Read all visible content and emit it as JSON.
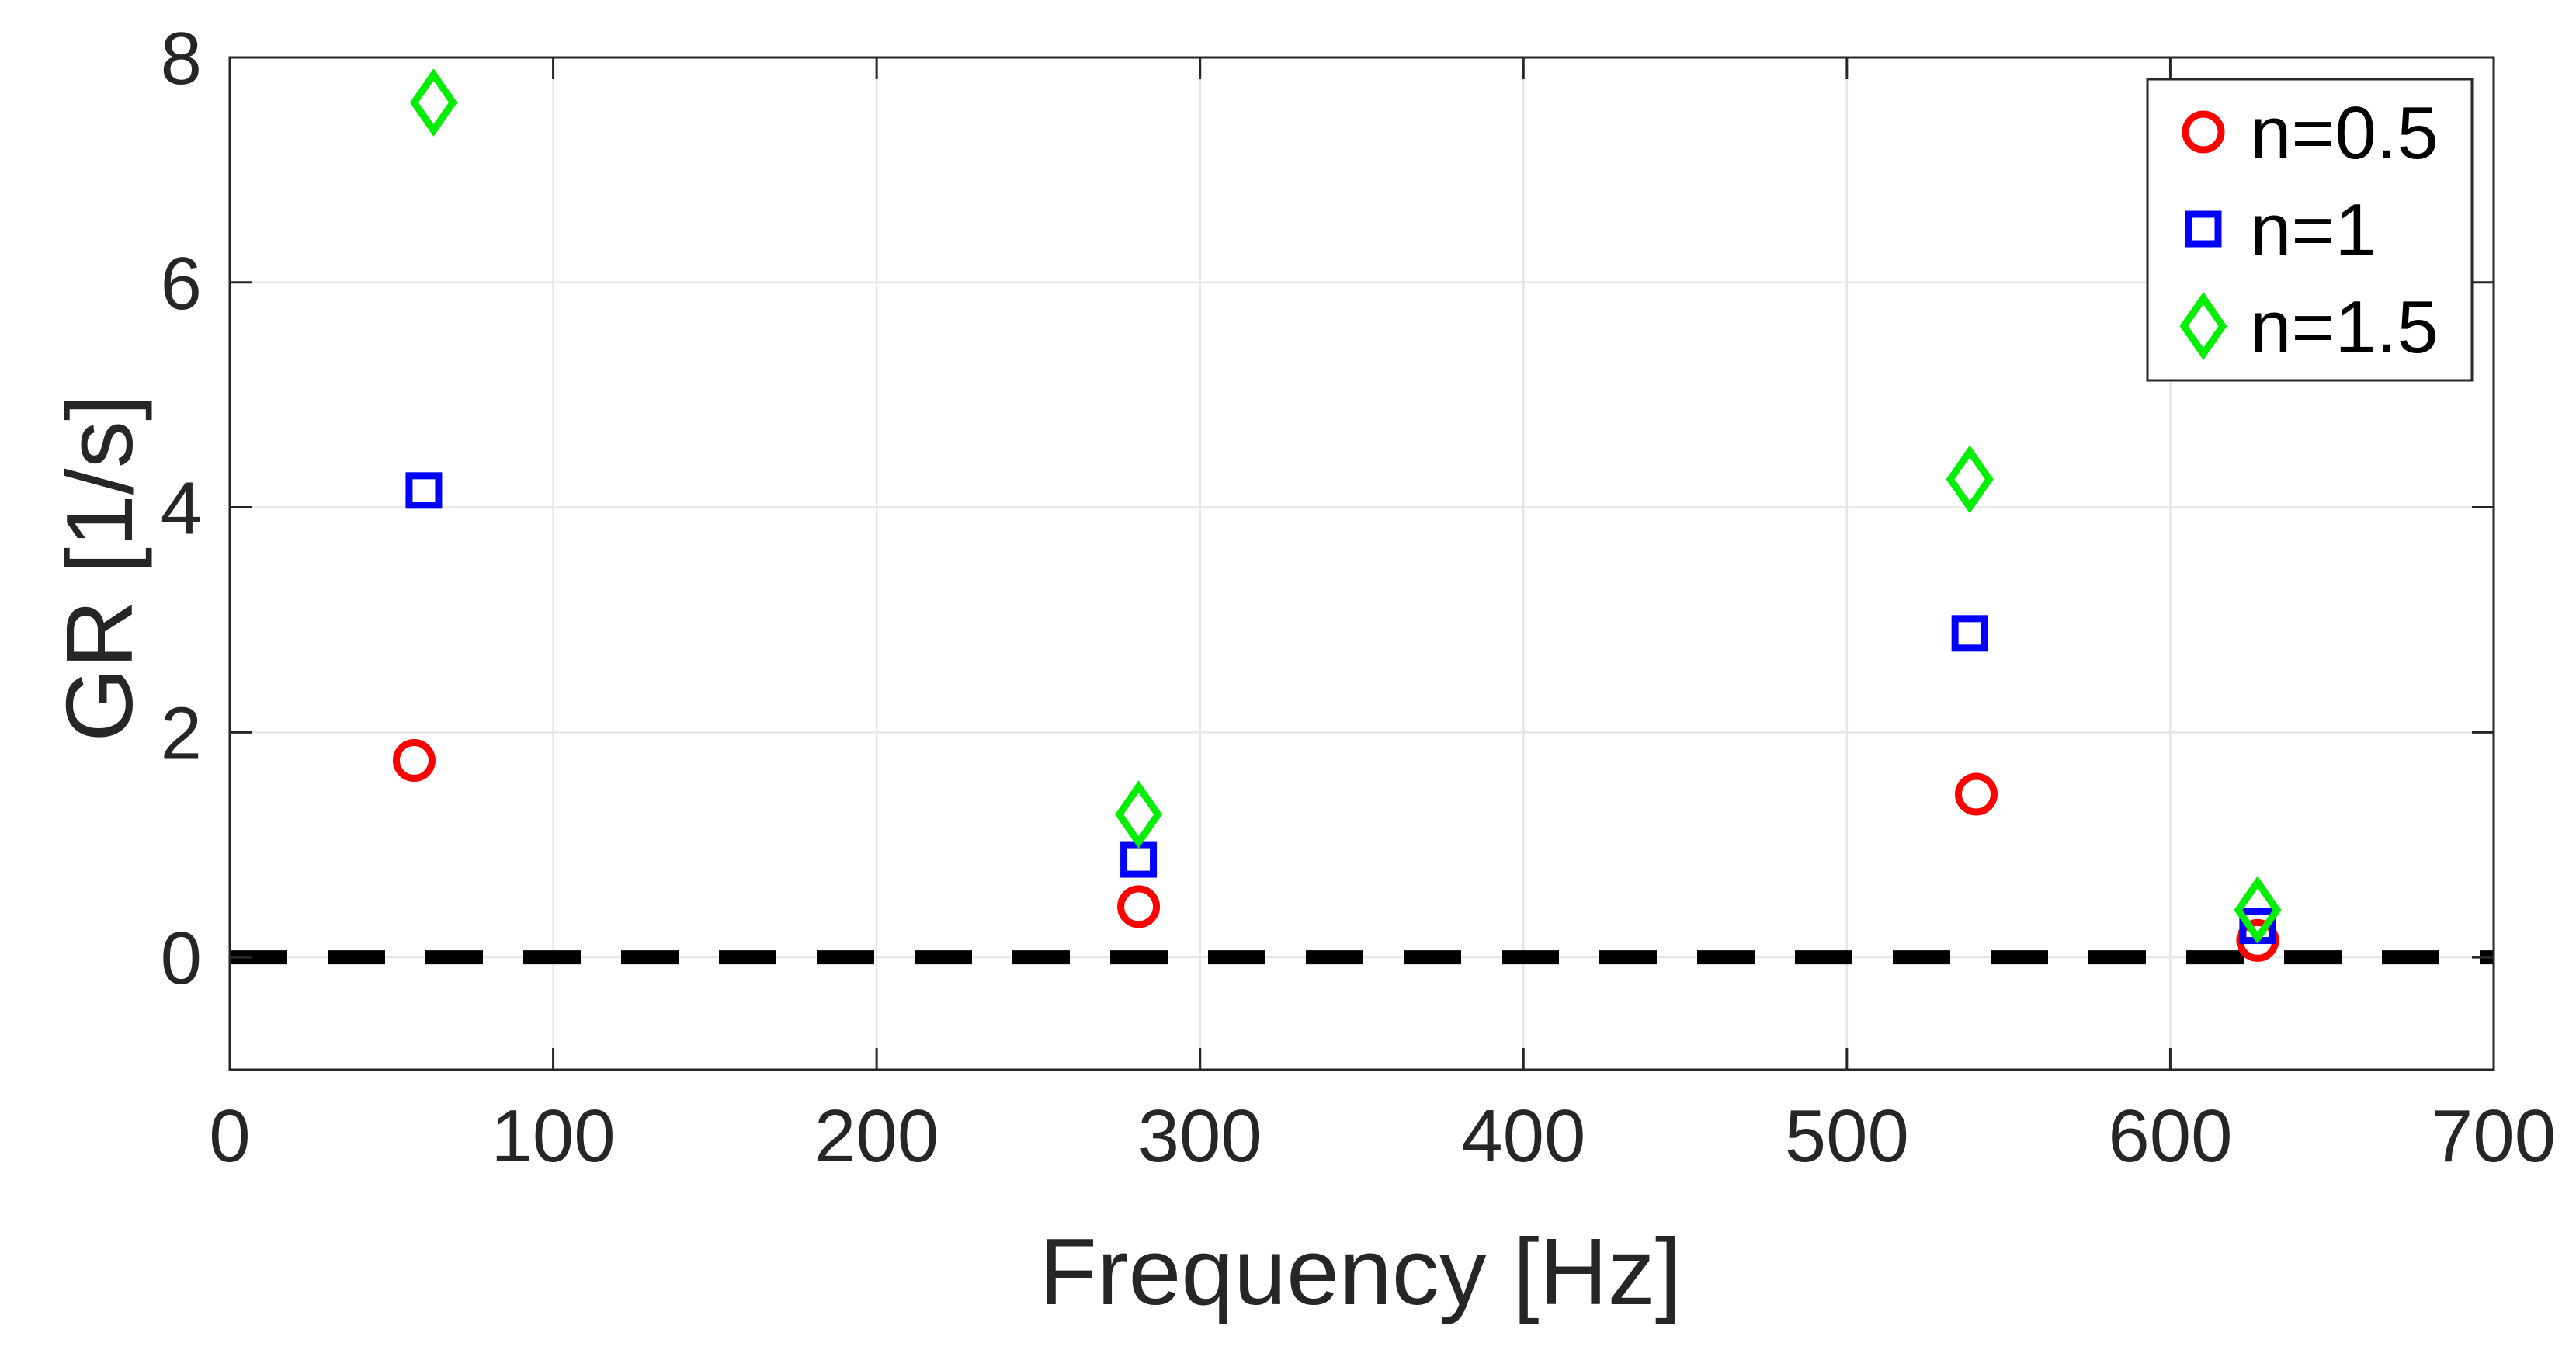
{
  "chart_data": {
    "type": "scatter",
    "title": "",
    "xlabel": "Frequency [Hz]",
    "ylabel": "GR [1/s]",
    "xlim": [
      0,
      700
    ],
    "ylim": [
      -1,
      8
    ],
    "xticks": [
      0,
      100,
      200,
      300,
      400,
      500,
      600,
      700
    ],
    "yticks": [
      0,
      2,
      4,
      6,
      8
    ],
    "xtick_labels": [
      "0",
      "100",
      "200",
      "300",
      "400",
      "500",
      "600",
      "700"
    ],
    "ytick_labels": [
      "0",
      "2",
      "4",
      "6",
      "8"
    ],
    "grid": true,
    "legend_position": "top-right",
    "reference_line": {
      "y": 0,
      "style": "dashed",
      "color": "#000000"
    },
    "series": [
      {
        "name": "n=0.5",
        "marker": "circle",
        "color": "#ff0000",
        "x": [
          57,
          281,
          540,
          627
        ],
        "y": [
          1.75,
          0.45,
          1.45,
          0.15
        ]
      },
      {
        "name": "n=1",
        "marker": "square",
        "color": "#0000ff",
        "x": [
          60,
          281,
          538,
          627
        ],
        "y": [
          4.15,
          0.87,
          2.88,
          0.28
        ]
      },
      {
        "name": "n=1.5",
        "marker": "diamond",
        "color": "#00ee00",
        "x": [
          63,
          281,
          538,
          627
        ],
        "y": [
          7.6,
          1.27,
          4.25,
          0.42
        ]
      }
    ]
  }
}
